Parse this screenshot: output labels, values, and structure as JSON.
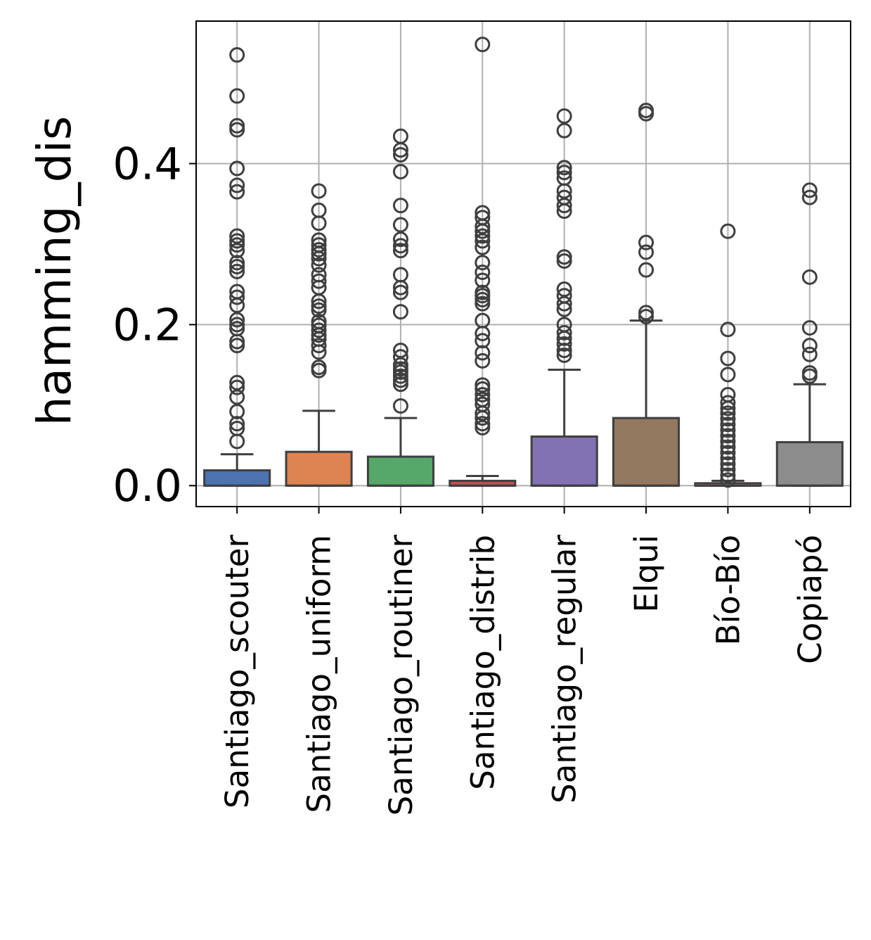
{
  "chart_data": {
    "type": "box",
    "title": "",
    "xlabel": "",
    "ylabel": "hamming_dis",
    "ylim": [
      -0.026,
      0.577
    ],
    "yticks": [
      0.0,
      0.2,
      0.4
    ],
    "ytick_labels": [
      "0.0",
      "0.2",
      "0.4"
    ],
    "grid": true,
    "categories": [
      "Santiago_scouter",
      "Santiago_uniform",
      "Santiago_routiner",
      "Santiago_distrib",
      "Santiago_regular",
      "Elqui",
      "Bío-Bío",
      "Copiapó"
    ],
    "boxes": [
      {
        "name": "Santiago_scouter",
        "color": "#4c72b0",
        "q1": 0.0,
        "median": 0.0,
        "q3": 0.019,
        "whisker_low": 0.0,
        "whisker_high": 0.039,
        "outliers": [
          0.535,
          0.484,
          0.447,
          0.442,
          0.394,
          0.373,
          0.365,
          0.31,
          0.304,
          0.299,
          0.292,
          0.277,
          0.272,
          0.266,
          0.241,
          0.234,
          0.224,
          0.206,
          0.2,
          0.195,
          0.179,
          0.174,
          0.128,
          0.122,
          0.11,
          0.092,
          0.077,
          0.071,
          0.055
        ]
      },
      {
        "name": "Santiago_uniform",
        "color": "#dd8452",
        "q1": 0.0,
        "median": 0.0,
        "q3": 0.042,
        "whisker_low": 0.0,
        "whisker_high": 0.093,
        "outliers": [
          0.366,
          0.342,
          0.326,
          0.305,
          0.299,
          0.293,
          0.288,
          0.282,
          0.274,
          0.262,
          0.254,
          0.246,
          0.229,
          0.223,
          0.218,
          0.204,
          0.199,
          0.193,
          0.187,
          0.182,
          0.174,
          0.166,
          0.147,
          0.143
        ]
      },
      {
        "name": "Santiago_routiner",
        "color": "#55a868",
        "q1": 0.0,
        "median": 0.0,
        "q3": 0.036,
        "whisker_low": 0.0,
        "whisker_high": 0.084,
        "outliers": [
          0.434,
          0.417,
          0.411,
          0.39,
          0.348,
          0.324,
          0.306,
          0.298,
          0.292,
          0.262,
          0.246,
          0.24,
          0.216,
          0.168,
          0.16,
          0.15,
          0.145,
          0.141,
          0.136,
          0.131,
          0.126,
          0.099
        ]
      },
      {
        "name": "Santiago_distrib",
        "color": "#c44e52",
        "q1": 0.0,
        "median": 0.0,
        "q3": 0.006,
        "whisker_low": 0.0,
        "whisker_high": 0.012,
        "outliers": [
          0.548,
          0.339,
          0.333,
          0.322,
          0.316,
          0.31,
          0.304,
          0.296,
          0.277,
          0.265,
          0.255,
          0.24,
          0.236,
          0.231,
          0.226,
          0.205,
          0.189,
          0.18,
          0.165,
          0.155,
          0.125,
          0.12,
          0.113,
          0.107,
          0.101,
          0.09,
          0.084,
          0.077,
          0.072
        ]
      },
      {
        "name": "Santiago_regular",
        "color": "#8172b3",
        "q1": 0.0,
        "median": 0.0,
        "q3": 0.061,
        "whisker_low": 0.0,
        "whisker_high": 0.144,
        "outliers": [
          0.459,
          0.441,
          0.395,
          0.389,
          0.382,
          0.366,
          0.358,
          0.348,
          0.341,
          0.284,
          0.279,
          0.244,
          0.236,
          0.226,
          0.219,
          0.2,
          0.19,
          0.183,
          0.176,
          0.168,
          0.162
        ]
      },
      {
        "name": "Elqui",
        "color": "#937860",
        "q1": 0.0,
        "median": 0.0,
        "q3": 0.084,
        "whisker_low": 0.0,
        "whisker_high": 0.205,
        "outliers": [
          0.466,
          0.462,
          0.302,
          0.29,
          0.268,
          0.215,
          0.21
        ]
      },
      {
        "name": "Bío-Bío",
        "color": "#da8bc3",
        "q1": 0.0,
        "median": 0.0,
        "q3": 0.003,
        "whisker_low": 0.0,
        "whisker_high": 0.006,
        "outliers": [
          0.316,
          0.194,
          0.158,
          0.138,
          0.113,
          0.103,
          0.096,
          0.09,
          0.083,
          0.076,
          0.069,
          0.062,
          0.055,
          0.048,
          0.041,
          0.034,
          0.027,
          0.02,
          0.013,
          0.007
        ]
      },
      {
        "name": "Copiapó",
        "color": "#8c8c8c",
        "q1": 0.0,
        "median": 0.0,
        "q3": 0.054,
        "whisker_low": 0.0,
        "whisker_high": 0.126,
        "outliers": [
          0.367,
          0.358,
          0.259,
          0.196,
          0.174,
          0.163,
          0.14,
          0.136
        ]
      }
    ]
  }
}
